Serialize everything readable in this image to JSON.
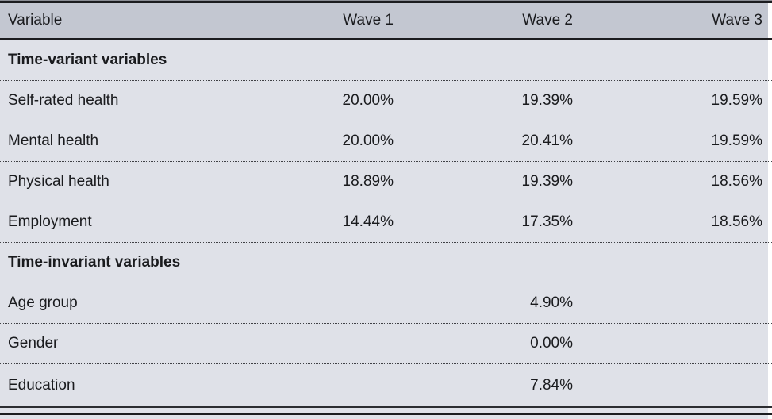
{
  "table": {
    "columns": [
      "Variable",
      "Wave 1",
      "Wave 2",
      "Wave 3"
    ],
    "sections": [
      {
        "header": "Time-variant variables",
        "rows": [
          {
            "label": "Self-rated health",
            "values": [
              "20.00%",
              "19.39%",
              "19.59%"
            ]
          },
          {
            "label": "Mental health",
            "values": [
              "20.00%",
              "20.41%",
              "19.59%"
            ]
          },
          {
            "label": "Physical health",
            "values": [
              "18.89%",
              "19.39%",
              "18.56%"
            ]
          },
          {
            "label": "Employment",
            "values": [
              "14.44%",
              "17.35%",
              "18.56%"
            ]
          }
        ]
      },
      {
        "header": "Time-invariant variables",
        "rows": [
          {
            "label": "Age group",
            "values": [
              "",
              "4.90%",
              ""
            ]
          },
          {
            "label": "Gender",
            "values": [
              "",
              "0.00%",
              ""
            ]
          },
          {
            "label": "Education",
            "values": [
              "",
              "7.84%",
              ""
            ]
          }
        ]
      }
    ]
  },
  "colors": {
    "header_bg": "#c3c7d1",
    "row_bg": "#dfe1e8",
    "rule": "#1b1c1f",
    "text": "#1a1b1e"
  }
}
